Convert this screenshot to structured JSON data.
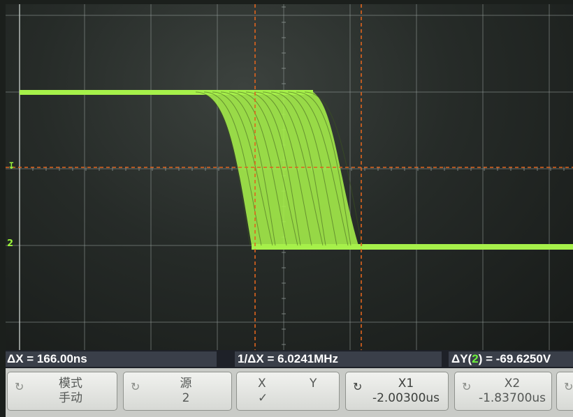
{
  "colors": {
    "trace": "#a6f04a",
    "cursor": "#e0641e",
    "grid": "#9aa3a0",
    "channel_2": "#6df23c"
  },
  "cursors": {
    "x1_marker_icon": "cursor-x1-icon",
    "ground_marker": "2"
  },
  "status": {
    "delta_x": "ΔX = 166.00ns",
    "inverse_delta_x": "1/ΔX = 6.0241MHz",
    "delta_y_prefix": "ΔY(",
    "delta_y_channel": "2",
    "delta_y_suffix": ") = -69.6250V"
  },
  "softkeys": {
    "mode": {
      "title": "模式",
      "value": "手动",
      "icon": "rotary-knob-icon"
    },
    "source": {
      "title": "源",
      "value": "2",
      "icon": "rotary-knob-icon"
    },
    "xy": {
      "x_label": "X",
      "y_label": "Y",
      "checked_mark": "✓"
    },
    "x1": {
      "title": "X1",
      "value": "-2.00300us",
      "icon": "rotary-knob-icon"
    },
    "x2": {
      "title": "X2",
      "value": "-1.83700us",
      "icon": "rotary-knob-icon"
    },
    "more": {
      "icon": "rotary-knob-icon"
    }
  }
}
